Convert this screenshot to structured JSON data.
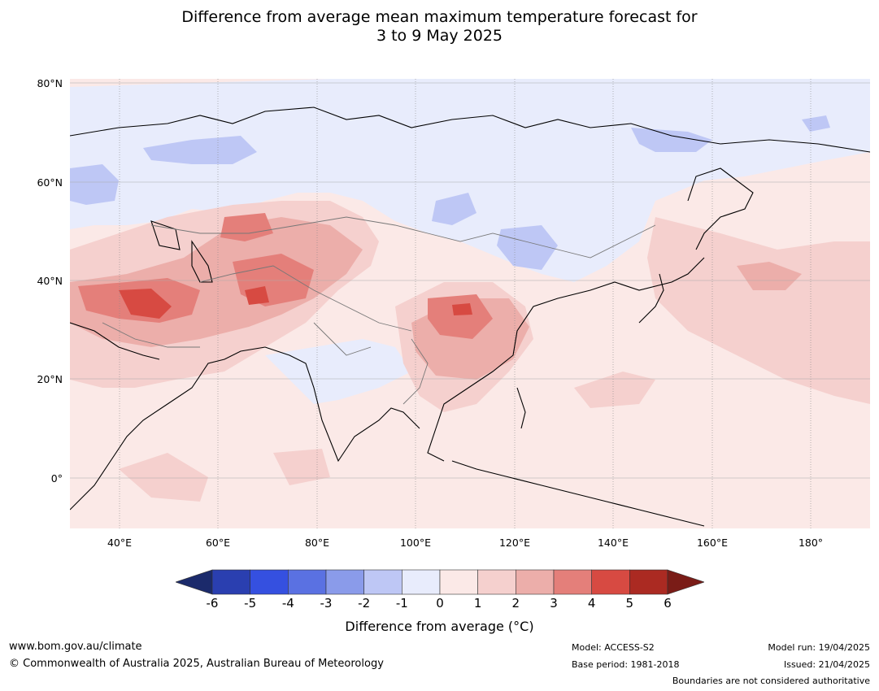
{
  "title": {
    "line1": "Difference from average mean maximum temperature forecast for",
    "line2": "3 to 9 May 2025"
  },
  "map": {
    "projection": "Plate Carree",
    "lon_range": [
      30,
      192
    ],
    "lat_range": [
      -10,
      80
    ],
    "lat_labels": [
      "80°N",
      "60°N",
      "40°N",
      "20°N",
      "0°"
    ],
    "lon_labels": [
      "40°E",
      "60°E",
      "80°E",
      "100°E",
      "120°E",
      "140°E",
      "160°E",
      "180°"
    ],
    "background_color": "#fbe9e7",
    "features": [
      "coastlines",
      "country boundaries",
      "graticule"
    ]
  },
  "colorbar": {
    "ticks": [
      "-6",
      "-5",
      "-4",
      "-3",
      "-2",
      "-1",
      "0",
      "1",
      "2",
      "3",
      "4",
      "5",
      "6"
    ],
    "colors": [
      "#1b2a6b",
      "#2a3fb0",
      "#3550e0",
      "#5a71e2",
      "#8a9bea",
      "#bec7f5",
      "#e8ecfc",
      "#fbe9e7",
      "#f5d0ce",
      "#ecaeaa",
      "#e47f7a",
      "#d74a42",
      "#ab2a22",
      "#7a1c17"
    ],
    "label": "Difference from average (°C)"
  },
  "footer": {
    "website": "www.bom.gov.au/climate",
    "copyright": "© Commonwealth of Australia 2025, Australian Bureau of Meteorology",
    "model": "Model: ACCESS-S2",
    "base_period": "Base period: 1981-2018",
    "model_run": "Model run: 19/04/2025",
    "issued": "Issued: 21/04/2025",
    "disclaimer": "Boundaries are not considered authoritative"
  }
}
